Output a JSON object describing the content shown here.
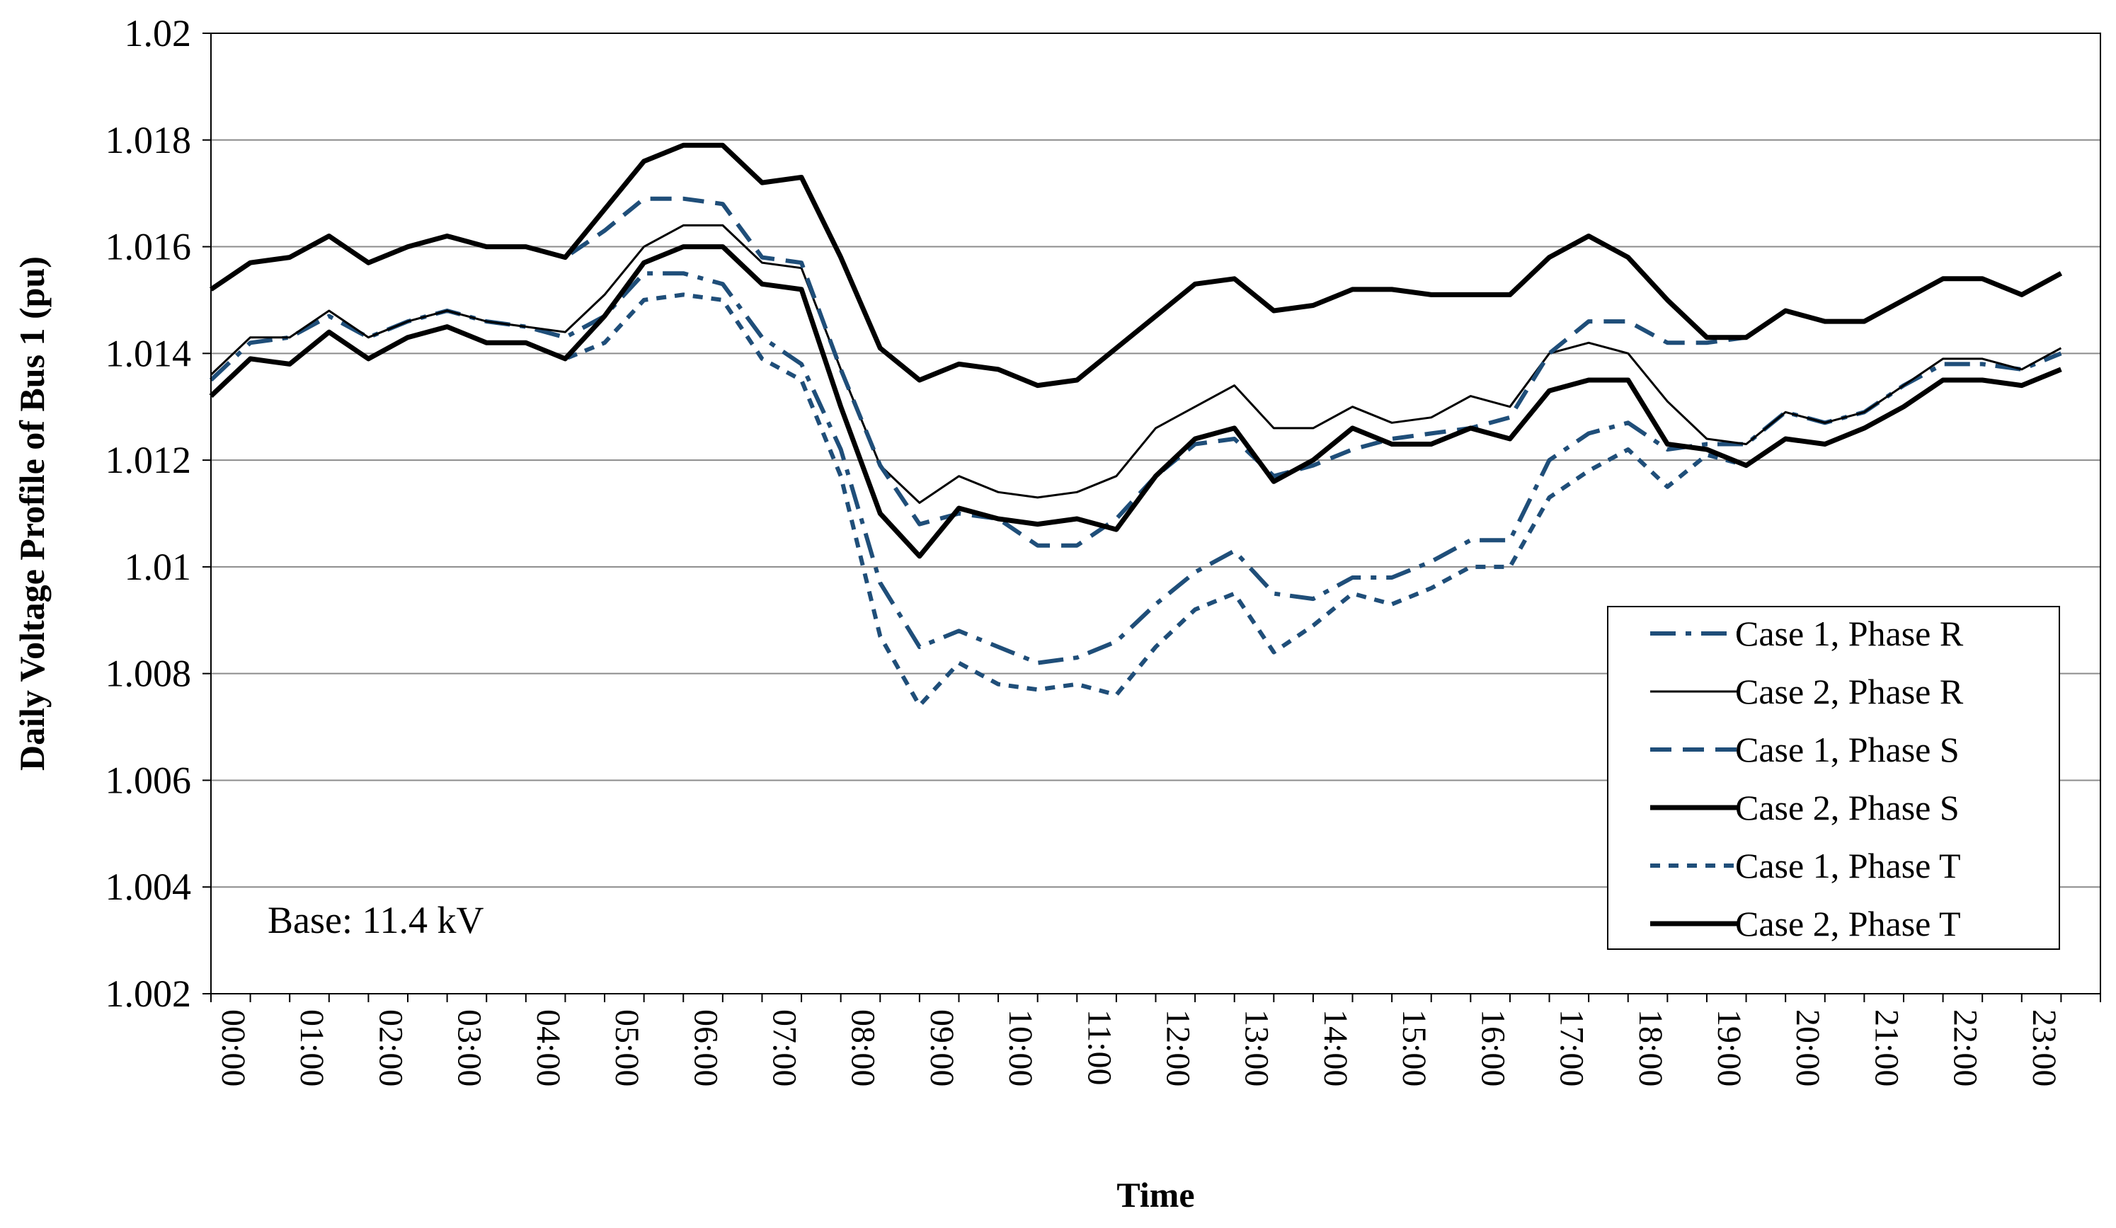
{
  "chart_data": {
    "type": "line",
    "title": "",
    "xlabel": "Time",
    "ylabel": "Daily Voltage Profile of Bus 1 (pu)",
    "ylim": [
      1.002,
      1.02
    ],
    "yticks": [
      "1.002",
      "1.004",
      "1.006",
      "1.008",
      "1.01",
      "1.012",
      "1.014",
      "1.016",
      "1.018",
      "1.02"
    ],
    "grid": true,
    "legend_position": "right",
    "annotation": "Base: 11.4 kV",
    "x_tick_labels": [
      "00:00",
      "01:00",
      "02:00",
      "03:00",
      "04:00",
      "05:00",
      "06:00",
      "07:00",
      "08:00",
      "09:00",
      "10:00",
      "11:00",
      "12:00",
      "13:00",
      "14:00",
      "15:00",
      "16:00",
      "17:00",
      "18:00",
      "19:00",
      "20:00",
      "21:00",
      "22:00",
      "23:00"
    ],
    "x": [
      "00:00",
      "00:30",
      "01:00",
      "01:30",
      "02:00",
      "02:30",
      "03:00",
      "03:30",
      "04:00",
      "04:30",
      "05:00",
      "05:30",
      "06:00",
      "06:30",
      "07:00",
      "07:30",
      "08:00",
      "08:30",
      "09:00",
      "09:30",
      "10:00",
      "10:30",
      "11:00",
      "11:30",
      "12:00",
      "12:30",
      "13:00",
      "13:30",
      "14:00",
      "14:30",
      "15:00",
      "15:30",
      "16:00",
      "16:30",
      "17:00",
      "17:30",
      "18:00",
      "18:30",
      "19:00",
      "19:30",
      "20:00",
      "20:30",
      "21:00",
      "21:30",
      "22:00",
      "22:30",
      "23:00",
      "23:30"
    ],
    "series": [
      {
        "name": "Case 1, Phase R",
        "color": "#1f4e79",
        "style": "dashdot",
        "values": [
          1.0135,
          1.0142,
          1.0143,
          1.0147,
          1.0143,
          1.0146,
          1.0148,
          1.0146,
          1.0145,
          1.0143,
          1.0147,
          1.0155,
          1.0155,
          1.0153,
          1.0143,
          1.0138,
          1.0122,
          1.0097,
          1.0085,
          1.0088,
          1.0085,
          1.0082,
          1.0083,
          1.0086,
          1.0093,
          1.0099,
          1.0103,
          1.0095,
          1.0094,
          1.0098,
          1.0098,
          1.0101,
          1.0105,
          1.0105,
          1.012,
          1.0125,
          1.0127,
          1.0122,
          1.0123,
          1.0123,
          1.0129,
          1.0127,
          1.0129,
          1.0134,
          1.0138,
          1.0138,
          1.0137,
          1.014
        ]
      },
      {
        "name": "Case 2, Phase R",
        "color": "#000000",
        "style": "solid-thin",
        "values": [
          1.0136,
          1.0143,
          1.0143,
          1.0148,
          1.0143,
          1.0146,
          1.0148,
          1.0146,
          1.0145,
          1.0144,
          1.0151,
          1.016,
          1.0164,
          1.0164,
          1.0157,
          1.0156,
          1.0137,
          1.0119,
          1.0112,
          1.0117,
          1.0114,
          1.0113,
          1.0114,
          1.0117,
          1.0126,
          1.013,
          1.0134,
          1.0126,
          1.0126,
          1.013,
          1.0127,
          1.0128,
          1.0132,
          1.013,
          1.014,
          1.0142,
          1.014,
          1.0131,
          1.0124,
          1.0123,
          1.0129,
          1.0127,
          1.0129,
          1.0134,
          1.0139,
          1.0139,
          1.0137,
          1.0141
        ]
      },
      {
        "name": "Case 1, Phase S",
        "color": "#1f4e79",
        "style": "dashed",
        "values": [
          1.0152,
          1.0157,
          1.0158,
          1.0162,
          1.0157,
          1.016,
          1.0162,
          1.016,
          1.016,
          1.0158,
          1.0163,
          1.0169,
          1.0169,
          1.0168,
          1.0158,
          1.0157,
          1.0137,
          1.0119,
          1.0108,
          1.011,
          1.0109,
          1.0104,
          1.0104,
          1.0109,
          1.0117,
          1.0123,
          1.0124,
          1.0117,
          1.0119,
          1.0122,
          1.0124,
          1.0125,
          1.0126,
          1.0128,
          1.014,
          1.0146,
          1.0146,
          1.0142,
          1.0142,
          1.0143,
          1.0148,
          1.0146,
          1.0146,
          1.015,
          1.0154,
          1.0154,
          1.0151,
          1.0155
        ]
      },
      {
        "name": "Case 2, Phase S",
        "color": "#000000",
        "style": "solid-thick",
        "values": [
          1.0152,
          1.0157,
          1.0158,
          1.0162,
          1.0157,
          1.016,
          1.0162,
          1.016,
          1.016,
          1.0158,
          1.0167,
          1.0176,
          1.0179,
          1.0179,
          1.0172,
          1.0173,
          1.0158,
          1.0141,
          1.0135,
          1.0138,
          1.0137,
          1.0134,
          1.0135,
          1.0141,
          1.0147,
          1.0153,
          1.0154,
          1.0148,
          1.0149,
          1.0152,
          1.0152,
          1.0151,
          1.0151,
          1.0151,
          1.0158,
          1.0162,
          1.0158,
          1.015,
          1.0143,
          1.0143,
          1.0148,
          1.0146,
          1.0146,
          1.015,
          1.0154,
          1.0154,
          1.0151,
          1.0155
        ]
      },
      {
        "name": "Case 1, Phase T",
        "color": "#1f4e79",
        "style": "dotted",
        "values": [
          1.0132,
          1.0139,
          1.0138,
          1.0144,
          1.0139,
          1.0143,
          1.0145,
          1.0142,
          1.0142,
          1.0139,
          1.0142,
          1.015,
          1.0151,
          1.015,
          1.0139,
          1.0135,
          1.0117,
          1.0087,
          1.0074,
          1.0082,
          1.0078,
          1.0077,
          1.0078,
          1.0076,
          1.0085,
          1.0092,
          1.0095,
          1.0084,
          1.0089,
          1.0095,
          1.0093,
          1.0096,
          1.01,
          1.01,
          1.0113,
          1.0118,
          1.0122,
          1.0115,
          1.0121,
          1.0119,
          1.0124,
          1.0123,
          1.0126,
          1.013,
          1.0135,
          1.0135,
          1.0134,
          1.0137
        ]
      },
      {
        "name": "Case 2, Phase T",
        "color": "#000000",
        "style": "solid-thick",
        "values": [
          1.0132,
          1.0139,
          1.0138,
          1.0144,
          1.0139,
          1.0143,
          1.0145,
          1.0142,
          1.0142,
          1.0139,
          1.0147,
          1.0157,
          1.016,
          1.016,
          1.0153,
          1.0152,
          1.013,
          1.011,
          1.0102,
          1.0111,
          1.0109,
          1.0108,
          1.0109,
          1.0107,
          1.0117,
          1.0124,
          1.0126,
          1.0116,
          1.012,
          1.0126,
          1.0123,
          1.0123,
          1.0126,
          1.0124,
          1.0133,
          1.0135,
          1.0135,
          1.0123,
          1.0122,
          1.0119,
          1.0124,
          1.0123,
          1.0126,
          1.013,
          1.0135,
          1.0135,
          1.0134,
          1.0137
        ]
      }
    ]
  }
}
